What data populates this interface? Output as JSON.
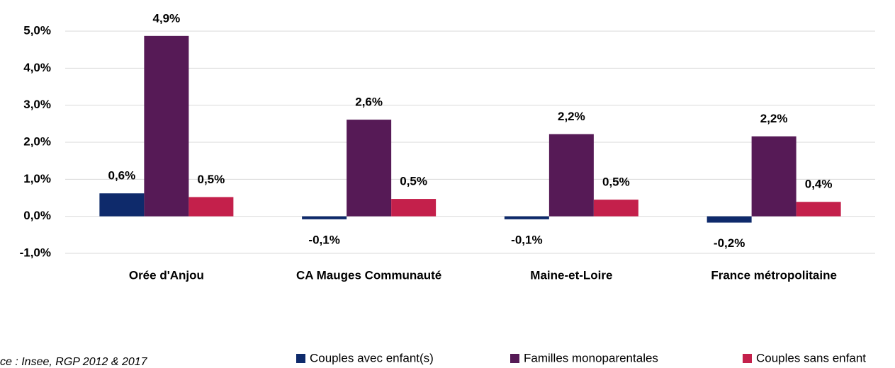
{
  "chart_data": {
    "type": "bar",
    "categories": [
      "Orée d'Anjou",
      "CA Mauges Communauté",
      "Maine-et-Loire",
      "France métropolitaine"
    ],
    "series": [
      {
        "name": "Couples avec enfant(s)",
        "color": "#0e2a6b",
        "values": [
          0.62,
          -0.08,
          -0.08,
          -0.17
        ],
        "value_labels": [
          "0,6%",
          "-0,1%",
          "-0,1%",
          "-0,2%"
        ]
      },
      {
        "name": "Familles monoparentales",
        "color": "#561a56",
        "values": [
          4.87,
          2.61,
          2.22,
          2.16
        ],
        "value_labels": [
          "4,9%",
          "2,6%",
          "2,2%",
          "2,2%"
        ]
      },
      {
        "name": "Couples sans enfant",
        "color": "#c4204b",
        "values": [
          0.52,
          0.47,
          0.45,
          0.39
        ],
        "value_labels": [
          "0,5%",
          "0,5%",
          "0,5%",
          "0,4%"
        ]
      }
    ],
    "ylim": [
      -1,
      5
    ],
    "yticks": [
      {
        "value": -1,
        "label": "-1,0%"
      },
      {
        "value": 0,
        "label": "0,0%"
      },
      {
        "value": 1,
        "label": "1,0%"
      },
      {
        "value": 2,
        "label": "2,0%"
      },
      {
        "value": 3,
        "label": "3,0%"
      },
      {
        "value": 4,
        "label": "4,0%"
      },
      {
        "value": 5,
        "label": "5,0%"
      }
    ],
    "grid": true,
    "legend": "bottom",
    "source": "ce : Insee, RGP 2012 & 2017"
  }
}
